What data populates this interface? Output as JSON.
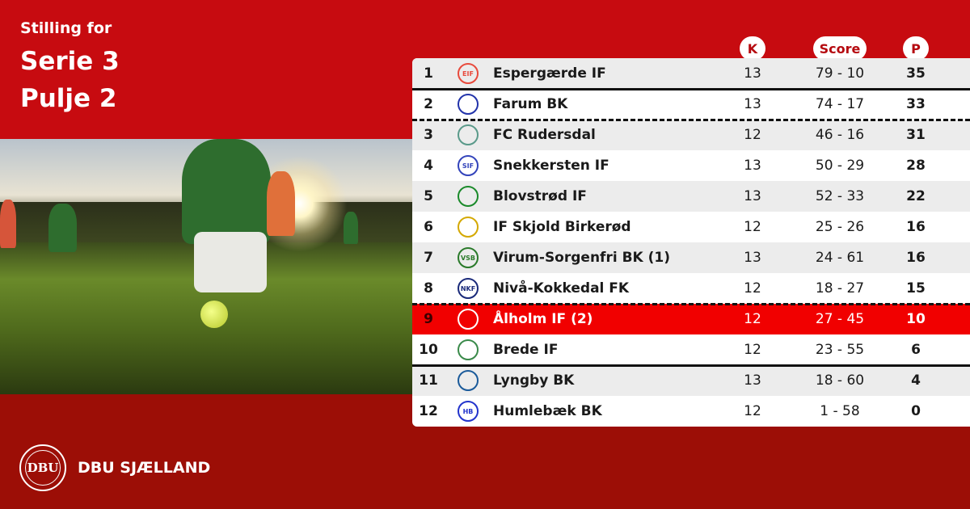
{
  "header": {
    "line1": "Stilling for",
    "line2": "Serie 3",
    "line3": "Pulje 2"
  },
  "columns": {
    "k": "K",
    "score": "Score",
    "p": "P"
  },
  "colors": {
    "brand_red": "#c70b10",
    "highlight": "#f10000",
    "footer": "#9c0e06"
  },
  "rows": [
    {
      "pos": "1",
      "team": "Espergærde IF",
      "k": "13",
      "score": "79 - 10",
      "p": "35",
      "logo": "EIF",
      "logo_color": "#e84a3c"
    },
    {
      "pos": "2",
      "team": "Farum BK",
      "k": "13",
      "score": "74 - 17",
      "p": "33",
      "logo": "",
      "logo_color": "#2233aa"
    },
    {
      "pos": "3",
      "team": "FC Rudersdal",
      "k": "12",
      "score": "46 - 16",
      "p": "31",
      "logo": "",
      "logo_color": "#5a9a8a"
    },
    {
      "pos": "4",
      "team": "Snekkersten IF",
      "k": "13",
      "score": "50 - 29",
      "p": "28",
      "logo": "SIF",
      "logo_color": "#3344bb"
    },
    {
      "pos": "5",
      "team": "Blovstrød IF",
      "k": "13",
      "score": "52 - 33",
      "p": "22",
      "logo": "",
      "logo_color": "#1a8a2a"
    },
    {
      "pos": "6",
      "team": "IF Skjold Birkerød",
      "k": "12",
      "score": "25 - 26",
      "p": "16",
      "logo": "",
      "logo_color": "#d4a800"
    },
    {
      "pos": "7",
      "team": "Virum-Sorgenfri BK (1)",
      "k": "13",
      "score": "24 - 61",
      "p": "16",
      "logo": "VSB",
      "logo_color": "#2a7a2a"
    },
    {
      "pos": "8",
      "team": "Nivå-Kokkedal FK",
      "k": "12",
      "score": "18 - 27",
      "p": "15",
      "logo": "NKF",
      "logo_color": "#1a2a7a"
    },
    {
      "pos": "9",
      "team": "Ålholm IF (2)",
      "k": "12",
      "score": "27 - 45",
      "p": "10",
      "logo": "",
      "logo_color": "#ffffff"
    },
    {
      "pos": "10",
      "team": "Brede IF",
      "k": "12",
      "score": "23 - 55",
      "p": "6",
      "logo": "",
      "logo_color": "#3a8a4a"
    },
    {
      "pos": "11",
      "team": "Lyngby BK",
      "k": "13",
      "score": "18 - 60",
      "p": "4",
      "logo": "",
      "logo_color": "#1a5a9a"
    },
    {
      "pos": "12",
      "team": "Humlebæk BK",
      "k": "12",
      "score": "1 - 58",
      "p": "0",
      "logo": "HB",
      "logo_color": "#2233cc"
    }
  ],
  "footer": {
    "logo_text": "DBU",
    "brand": "DBU SJÆLLAND"
  }
}
